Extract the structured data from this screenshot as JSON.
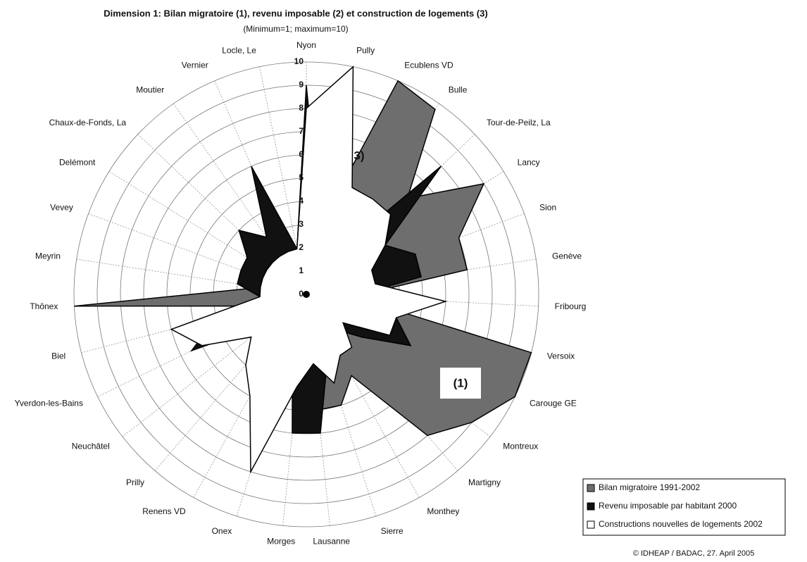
{
  "chart_data": {
    "type": "radar",
    "title": "Dimension 1: Bilan migratoire (1), revenu imposable (2) et construction de logements (3)",
    "subtitle": "(Minimum=1; maximum=10)",
    "categories": [
      "Nyon",
      "Pully",
      "Ecublens VD",
      "Bulle",
      "Tour-de-Peilz, La",
      "Lancy",
      "Sion",
      "Genève",
      "Fribourg",
      "Versoix",
      "Carouge GE",
      "Montreux",
      "Martigny",
      "Monthey",
      "Sierre",
      "Lausanne",
      "Morges",
      "Onex",
      "Renens VD",
      "Prilly",
      "Neuchâtel",
      "Yverdon-les-Bains",
      "Biel",
      "Thônex",
      "Meyrin",
      "Vevey",
      "Delémont",
      "Chaux-de-Fonds, La",
      "Moutier",
      "Vernier",
      "Locle, Le"
    ],
    "series": [
      {
        "name": "Bilan migratoire 1991-2002",
        "color": "#6e6e6e",
        "values": [
          1,
          3,
          10,
          9.7,
          6,
          9,
          7,
          7,
          2,
          10,
          10,
          9,
          8,
          4,
          5,
          5,
          5,
          3,
          2,
          2,
          2,
          3,
          2,
          10,
          2,
          2,
          2,
          2,
          2,
          2,
          2
        ]
      },
      {
        "name": "Revenu imposable par habitant 2000",
        "color": "#111111",
        "values": [
          9,
          3,
          3,
          2,
          8,
          4,
          5,
          5,
          2,
          4,
          5,
          3,
          2,
          3,
          3,
          6,
          6,
          2,
          2,
          2,
          2,
          5.5,
          4,
          2,
          3,
          3,
          3,
          4,
          3,
          6,
          2
        ]
      },
      {
        "name": "Constructions nouvelles de logements 2002",
        "color": "#ffffff",
        "values": [
          8,
          10,
          5,
          5,
          5,
          4,
          3,
          3,
          6,
          4,
          4,
          2,
          3,
          3,
          4,
          3,
          4,
          8,
          5,
          4,
          3,
          5,
          6,
          2,
          2,
          2,
          2,
          2,
          2,
          2,
          2
        ]
      }
    ],
    "ylim": [
      0,
      10
    ],
    "yticks": [
      0,
      1,
      2,
      3,
      4,
      5,
      6,
      7,
      8,
      9,
      10
    ],
    "grid": true,
    "annotations": [
      "3)",
      "(1)"
    ],
    "legend": "bottom-right",
    "footer": "© IDHEAP /  BADAC, 27. April 2005"
  }
}
